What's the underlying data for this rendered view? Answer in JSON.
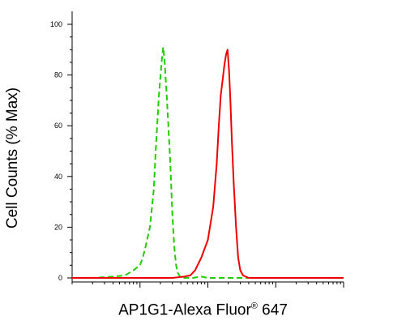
{
  "chart_data": {
    "type": "line",
    "xlabel_main": "AP1G1-Alexa Fluor",
    "xlabel_reg": "®",
    "xlabel_tail": " 647",
    "ylabel": "Cell Counts (% Max)",
    "ylim": [
      0,
      100
    ],
    "yticks": [
      "0",
      "20",
      "40",
      "60",
      "80",
      "100"
    ],
    "x_scale": "log",
    "xlim": [
      1,
      10000
    ],
    "grid": false,
    "series": [
      {
        "style": "dashed",
        "color": "#22cc00",
        "points": [
          [
            1,
            0
          ],
          [
            2,
            0
          ],
          [
            4,
            0.5
          ],
          [
            6,
            1
          ],
          [
            8,
            3
          ],
          [
            10,
            5
          ],
          [
            11,
            8
          ],
          [
            12,
            12
          ],
          [
            14,
            20
          ],
          [
            16,
            35
          ],
          [
            17,
            50
          ],
          [
            19,
            72
          ],
          [
            21,
            86
          ],
          [
            22,
            91
          ],
          [
            23,
            86
          ],
          [
            25,
            70
          ],
          [
            28,
            45
          ],
          [
            30,
            25
          ],
          [
            32,
            12
          ],
          [
            34,
            5
          ],
          [
            36,
            2
          ],
          [
            40,
            0
          ],
          [
            60,
            0
          ],
          [
            80,
            0.5
          ],
          [
            100,
            0
          ],
          [
            10000,
            0
          ]
        ]
      },
      {
        "style": "solid",
        "color": "#ee0000",
        "points": [
          [
            1,
            0
          ],
          [
            30,
            0
          ],
          [
            45,
            0.5
          ],
          [
            55,
            1
          ],
          [
            65,
            3
          ],
          [
            80,
            8
          ],
          [
            100,
            15
          ],
          [
            120,
            28
          ],
          [
            135,
            45
          ],
          [
            145,
            60
          ],
          [
            155,
            72
          ],
          [
            165,
            78
          ],
          [
            175,
            84
          ],
          [
            185,
            88
          ],
          [
            195,
            90
          ],
          [
            205,
            82
          ],
          [
            215,
            70
          ],
          [
            225,
            55
          ],
          [
            240,
            38
          ],
          [
            260,
            20
          ],
          [
            280,
            8
          ],
          [
            300,
            3
          ],
          [
            330,
            1
          ],
          [
            400,
            0
          ],
          [
            1000,
            0
          ],
          [
            10000,
            0
          ]
        ]
      }
    ]
  }
}
